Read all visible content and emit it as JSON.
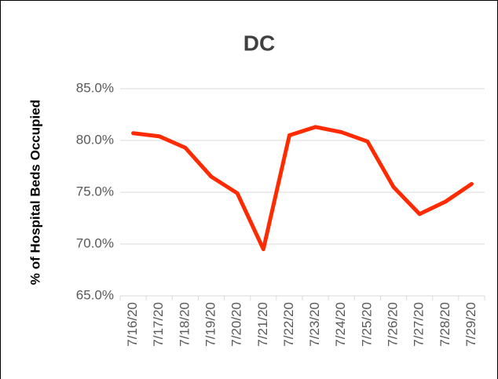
{
  "chart_data": {
    "type": "line",
    "title": "DC",
    "y_label": "% of Hospital Beds Occupied",
    "categories": [
      "7/16/20",
      "7/17/20",
      "7/18/20",
      "7/19/20",
      "7/20/20",
      "7/21/20",
      "7/22/20",
      "7/23/20",
      "7/24/20",
      "7/25/20",
      "7/26/20",
      "7/27/20",
      "7/28/20",
      "7/29/20"
    ],
    "series": [
      {
        "name": "DC",
        "color": "#ff2a00",
        "values": [
          80.7,
          80.4,
          79.3,
          76.5,
          74.9,
          69.5,
          80.5,
          81.3,
          80.8,
          79.9,
          75.5,
          72.9,
          74.1,
          75.8
        ]
      }
    ],
    "ylim": [
      65,
      85
    ],
    "yticks": [
      {
        "value": 65,
        "label": "65.0%"
      },
      {
        "value": 70,
        "label": "70.0%"
      },
      {
        "value": 75,
        "label": "75.0%"
      },
      {
        "value": 80,
        "label": "80.0%"
      },
      {
        "value": 85,
        "label": "85.0%"
      }
    ],
    "grid": true
  }
}
